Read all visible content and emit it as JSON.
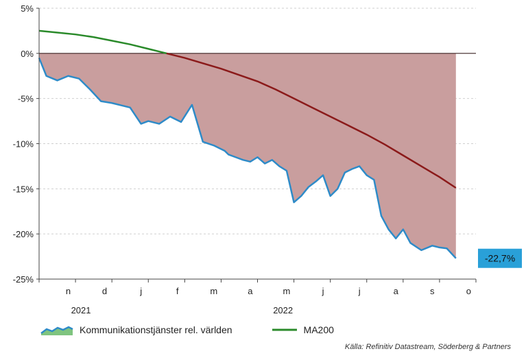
{
  "chart_data": {
    "type": "area",
    "y_unit": "%",
    "ylim": [
      -25,
      5
    ],
    "yticks": [
      5,
      0,
      -5,
      -10,
      -15,
      -20,
      -25
    ],
    "ytick_labels": [
      "5%",
      "0%",
      "-5%",
      "-10%",
      "-15%",
      "-20%",
      "-25%"
    ],
    "month_labels": [
      "n",
      "d",
      "j",
      "f",
      "m",
      "a",
      "m",
      "j",
      "j",
      "a",
      "s",
      "o"
    ],
    "year_labels": [
      "2021",
      "2022"
    ],
    "grid": true,
    "legend_position": "bottom-left",
    "series": [
      {
        "name": "Kommunikationstjänster rel. världen",
        "type": "area",
        "color": "#2e8bc8",
        "fill_above": "#c99e9e",
        "x": [
          0,
          0.2,
          0.5,
          0.8,
          1.1,
          1.4,
          1.7,
          2.0,
          2.3,
          2.5,
          2.8,
          3.0,
          3.3,
          3.6,
          3.9,
          4.2,
          4.5,
          4.8,
          5.1,
          5.2,
          5.4,
          5.6,
          5.8,
          6.0,
          6.2,
          6.4,
          6.6,
          6.8,
          7.0,
          7.2,
          7.4,
          7.6,
          7.8,
          8.0,
          8.2,
          8.4,
          8.6,
          8.8,
          9.0,
          9.2,
          9.4,
          9.6,
          9.8,
          10.0,
          10.2,
          10.5,
          10.8,
          11.0,
          11.2,
          11.45
        ],
        "values": [
          -0.5,
          -2.5,
          -3.0,
          -2.5,
          -2.8,
          -4.0,
          -5.3,
          -5.5,
          -5.8,
          -6.0,
          -7.8,
          -7.5,
          -7.8,
          -7.0,
          -7.6,
          -5.7,
          -9.8,
          -10.2,
          -10.8,
          -11.2,
          -11.5,
          -11.8,
          -12.0,
          -11.5,
          -12.2,
          -11.8,
          -12.5,
          -13.0,
          -16.5,
          -15.8,
          -14.8,
          -14.2,
          -13.5,
          -15.8,
          -15.0,
          -13.2,
          -12.8,
          -12.5,
          -13.5,
          -14.0,
          -18.0,
          -19.5,
          -20.5,
          -19.5,
          -21.0,
          -21.8,
          -21.3,
          -21.5,
          -21.6,
          -22.7
        ]
      },
      {
        "name": "MA200",
        "type": "line",
        "color": "#2a8a2a",
        "color_below_zero": "#8b1a1a",
        "x": [
          0,
          0.5,
          1.0,
          1.5,
          2.0,
          2.5,
          3.0,
          3.5,
          4.0,
          4.5,
          5.0,
          5.5,
          6.0,
          6.5,
          7.0,
          7.5,
          8.0,
          8.5,
          9.0,
          9.5,
          10.0,
          10.5,
          11.0,
          11.45
        ],
        "values": [
          2.5,
          2.3,
          2.1,
          1.8,
          1.4,
          1.0,
          0.5,
          0.0,
          -0.5,
          -1.1,
          -1.7,
          -2.4,
          -3.1,
          -4.0,
          -5.0,
          -6.0,
          -7.0,
          -8.0,
          -9.0,
          -10.1,
          -11.3,
          -12.5,
          -13.7,
          -14.9
        ]
      }
    ],
    "last_value_label": "-22,7%",
    "last_value_color": "#29a0d8"
  },
  "source": "Källa: Refinitiv Datastream, Söderberg & Partners"
}
